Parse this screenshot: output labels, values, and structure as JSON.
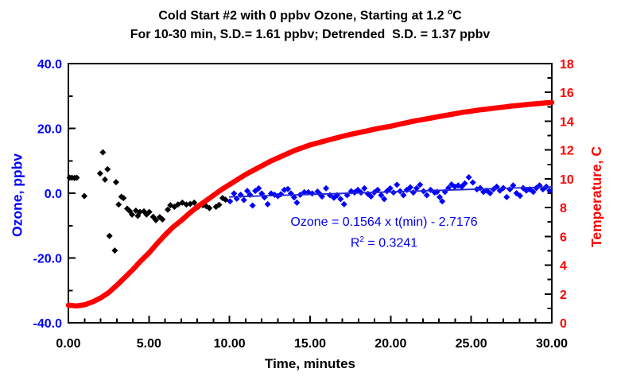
{
  "title": {
    "line1_prefix": "Cold Start #2 with 0 ppbv Ozone, Starting at 1.2 ",
    "line1_sup": "o",
    "line1_suffix": "C",
    "line2": "For 10-30 min, S.D.= 1.61 ppbv; Detrended  S.D. = 1.37 ppbv"
  },
  "annotation": {
    "equation": "Ozone = 0.1564 x t(min) - 2.7176",
    "r2_prefix": "R",
    "r2_sup": "2",
    "r2_suffix": " = 0.3241"
  },
  "colors": {
    "ozone": "#0000ff",
    "ozone_early": "#000000",
    "temperature": "#ff0000",
    "trend_line": "#2323d6",
    "axis": "#000000",
    "background": "#ffffff"
  },
  "chart_data": {
    "type": "scatter",
    "title": "Cold Start #2 with 0 ppbv Ozone, Starting at 1.2 oC",
    "subtitle": "For 10-30 min, S.D.= 1.61 ppbv; Detrended S.D. = 1.37 ppbv",
    "xlabel": "Time, minutes",
    "ylabel_left": "Ozone, ppbv",
    "ylabel_right": "Temperature, C",
    "xlim": [
      0,
      30
    ],
    "ylim_left": [
      -40,
      40
    ],
    "ylim_right": [
      0,
      18
    ],
    "grid": false,
    "x_ticks": {
      "major": [
        0,
        5,
        10,
        15,
        20,
        25,
        30
      ],
      "labels": [
        "0.00",
        "5.00",
        "10.00",
        "15.00",
        "20.00",
        "25.00",
        "30.00"
      ],
      "minor_step": 1
    },
    "y_left_ticks": {
      "major": [
        40,
        20,
        0,
        -20,
        -40
      ],
      "labels": [
        "40.0",
        "20.0",
        "0.0",
        "-20.0",
        "-40.0"
      ],
      "minor": [
        30,
        10,
        -10,
        -30
      ]
    },
    "y_right_ticks": {
      "major": [
        18,
        16,
        14,
        12,
        10,
        8,
        6,
        4,
        2,
        0
      ],
      "labels": [
        "18",
        "16",
        "14",
        "12",
        "10",
        "8",
        "6",
        "4",
        "2",
        "0"
      ],
      "minor": [
        17,
        15,
        13,
        11,
        9,
        7,
        5,
        3,
        1
      ]
    },
    "trend_fit": {
      "slope": 0.1564,
      "intercept": -2.7176,
      "r2": 0.3241,
      "t_range": [
        10,
        30
      ]
    },
    "series": [
      {
        "name": "ozone-0-10min",
        "kind": "scatter",
        "marker": "diamond",
        "axis": "left",
        "color": "#000000",
        "points": [
          [
            0.08,
            4.8
          ],
          [
            0.22,
            4.8
          ],
          [
            0.38,
            4.7
          ],
          [
            0.52,
            4.8
          ],
          [
            0.99,
            -0.9
          ],
          [
            1.97,
            6.1
          ],
          [
            2.14,
            12.6
          ],
          [
            2.27,
            4.2
          ],
          [
            2.43,
            7.4
          ],
          [
            2.55,
            -13.2
          ],
          [
            2.88,
            -17.7
          ],
          [
            2.96,
            3.4
          ],
          [
            3.12,
            -3.5
          ],
          [
            3.29,
            -1.1
          ],
          [
            3.42,
            -1.5
          ],
          [
            3.65,
            -4.8
          ],
          [
            3.8,
            -5.5
          ],
          [
            3.95,
            -6.6
          ],
          [
            4.19,
            -5.4
          ],
          [
            4.31,
            -7.0
          ],
          [
            4.44,
            -5.8
          ],
          [
            4.69,
            -5.6
          ],
          [
            4.85,
            -6.6
          ],
          [
            5.02,
            -5.8
          ],
          [
            5.26,
            -7.3
          ],
          [
            5.43,
            -8.3
          ],
          [
            5.67,
            -7.4
          ],
          [
            5.84,
            -8.1
          ],
          [
            6.17,
            -5.1
          ],
          [
            6.33,
            -3.7
          ],
          [
            6.58,
            -4.2
          ],
          [
            6.8,
            -3.5
          ],
          [
            7.07,
            -2.9
          ],
          [
            7.32,
            -3.5
          ],
          [
            7.56,
            -3.3
          ],
          [
            7.81,
            -2.9
          ],
          [
            8.06,
            -4.2
          ],
          [
            8.34,
            -3.7
          ],
          [
            8.55,
            -4.0
          ],
          [
            8.75,
            -4.6
          ],
          [
            9.16,
            -4.2
          ],
          [
            9.35,
            -3.6
          ],
          [
            9.57,
            -1.5
          ],
          [
            9.75,
            -2.0
          ]
        ]
      },
      {
        "name": "ozone-10-30min",
        "kind": "scatter",
        "marker": "diamond",
        "axis": "left",
        "color": "#0000ff",
        "points": [
          [
            10.03,
            -2.5
          ],
          [
            10.28,
            -0.1
          ],
          [
            10.45,
            -1.7
          ],
          [
            10.69,
            -0.5
          ],
          [
            10.89,
            -2.1
          ],
          [
            11.1,
            0.7
          ],
          [
            11.27,
            -0.5
          ],
          [
            11.43,
            -3.8
          ],
          [
            11.6,
            0.7
          ],
          [
            11.81,
            1.5
          ],
          [
            12.0,
            -0.1
          ],
          [
            12.17,
            -1.3
          ],
          [
            12.37,
            -3.4
          ],
          [
            12.58,
            -0.1
          ],
          [
            12.8,
            -0.5
          ],
          [
            13.0,
            -0.9
          ],
          [
            13.19,
            -0.3
          ],
          [
            13.4,
            1.0
          ],
          [
            13.62,
            1.3
          ],
          [
            13.81,
            -0.1
          ],
          [
            14.01,
            -1.3
          ],
          [
            14.18,
            -2.9
          ],
          [
            14.39,
            -0.5
          ],
          [
            14.64,
            0.3
          ],
          [
            14.89,
            0.3
          ],
          [
            15.13,
            -0.1
          ],
          [
            15.46,
            0.5
          ],
          [
            15.66,
            -0.5
          ],
          [
            15.74,
            -1.0
          ],
          [
            15.99,
            1.5
          ],
          [
            16.23,
            -0.6
          ],
          [
            16.48,
            -1.4
          ],
          [
            16.68,
            -0.6
          ],
          [
            16.89,
            -1.8
          ],
          [
            17.11,
            -3.4
          ],
          [
            17.3,
            -0.6
          ],
          [
            17.55,
            0.6
          ],
          [
            17.76,
            0.2
          ],
          [
            17.96,
            1.0
          ],
          [
            18.16,
            0.2
          ],
          [
            18.37,
            1.5
          ],
          [
            18.59,
            -0.2
          ],
          [
            18.78,
            -1.0
          ],
          [
            18.98,
            0.2
          ],
          [
            19.19,
            1.0
          ],
          [
            19.41,
            -0.6
          ],
          [
            19.6,
            -1.8
          ],
          [
            19.77,
            0.6
          ],
          [
            19.97,
            1.5
          ],
          [
            20.18,
            0.2
          ],
          [
            20.39,
            2.6
          ],
          [
            20.59,
            0.6
          ],
          [
            20.79,
            -0.6
          ],
          [
            21.0,
            1.0
          ],
          [
            21.22,
            1.8
          ],
          [
            21.41,
            0.2
          ],
          [
            21.61,
            1.5
          ],
          [
            21.82,
            2.6
          ],
          [
            22.04,
            0.6
          ],
          [
            22.24,
            -0.6
          ],
          [
            22.48,
            1.0
          ],
          [
            22.73,
            0.2
          ],
          [
            22.88,
            0.4
          ],
          [
            23.04,
            -1.2
          ],
          [
            23.2,
            -2.5
          ],
          [
            23.37,
            0.4
          ],
          [
            23.58,
            1.6
          ],
          [
            23.78,
            2.7
          ],
          [
            23.98,
            2.0
          ],
          [
            24.19,
            2.4
          ],
          [
            24.41,
            2.0
          ],
          [
            24.6,
            3.0
          ],
          [
            24.85,
            4.9
          ],
          [
            25.1,
            3.3
          ],
          [
            25.35,
            1.2
          ],
          [
            25.56,
            1.6
          ],
          [
            25.76,
            0.4
          ],
          [
            25.96,
            0.8
          ],
          [
            26.17,
            0.0
          ],
          [
            26.38,
            1.2
          ],
          [
            26.58,
            2.0
          ],
          [
            26.78,
            0.8
          ],
          [
            26.99,
            1.6
          ],
          [
            27.2,
            -1.2
          ],
          [
            27.4,
            1.2
          ],
          [
            27.6,
            2.4
          ],
          [
            27.81,
            0.0
          ],
          [
            28.03,
            -0.8
          ],
          [
            28.22,
            1.6
          ],
          [
            28.42,
            0.8
          ],
          [
            28.63,
            1.2
          ],
          [
            28.85,
            0.4
          ],
          [
            29.04,
            1.6
          ],
          [
            29.24,
            2.4
          ],
          [
            29.45,
            1.2
          ],
          [
            29.66,
            2.0
          ],
          [
            29.86,
            0.8
          ]
        ]
      },
      {
        "name": "temperature",
        "kind": "line",
        "axis": "right",
        "color": "#ff0000",
        "width": 6.5,
        "points": [
          [
            0,
            1.22
          ],
          [
            0.5,
            1.17
          ],
          [
            1,
            1.25
          ],
          [
            1.5,
            1.45
          ],
          [
            2,
            1.72
          ],
          [
            2.5,
            2.1
          ],
          [
            3,
            2.6
          ],
          [
            3.5,
            3.14
          ],
          [
            4,
            3.7
          ],
          [
            4.5,
            4.3
          ],
          [
            5,
            4.85
          ],
          [
            5.5,
            5.5
          ],
          [
            6,
            6.1
          ],
          [
            6.5,
            6.65
          ],
          [
            7,
            7.1
          ],
          [
            7.5,
            7.6
          ],
          [
            8,
            8.05
          ],
          [
            8.5,
            8.45
          ],
          [
            9,
            8.85
          ],
          [
            9.5,
            9.25
          ],
          [
            10,
            9.6
          ],
          [
            10.5,
            9.95
          ],
          [
            11,
            10.3
          ],
          [
            11.5,
            10.6
          ],
          [
            12,
            10.9
          ],
          [
            12.5,
            11.2
          ],
          [
            13,
            11.45
          ],
          [
            13.5,
            11.7
          ],
          [
            14,
            11.95
          ],
          [
            14.5,
            12.15
          ],
          [
            15,
            12.35
          ],
          [
            15.5,
            12.5
          ],
          [
            16,
            12.65
          ],
          [
            16.5,
            12.8
          ],
          [
            17,
            12.95
          ],
          [
            17.5,
            13.08
          ],
          [
            18,
            13.2
          ],
          [
            18.5,
            13.32
          ],
          [
            19,
            13.45
          ],
          [
            19.5,
            13.55
          ],
          [
            20,
            13.65
          ],
          [
            20.5,
            13.78
          ],
          [
            21,
            13.9
          ],
          [
            21.5,
            14.02
          ],
          [
            22,
            14.12
          ],
          [
            22.5,
            14.22
          ],
          [
            23,
            14.32
          ],
          [
            23.5,
            14.42
          ],
          [
            24,
            14.52
          ],
          [
            24.5,
            14.62
          ],
          [
            25,
            14.7
          ],
          [
            25.5,
            14.78
          ],
          [
            26,
            14.85
          ],
          [
            26.5,
            14.92
          ],
          [
            27,
            14.98
          ],
          [
            27.5,
            15.05
          ],
          [
            28,
            15.1
          ],
          [
            28.5,
            15.16
          ],
          [
            29,
            15.21
          ],
          [
            29.5,
            15.26
          ],
          [
            30,
            15.3
          ]
        ]
      },
      {
        "name": "ozone-trend-line",
        "kind": "line",
        "axis": "left",
        "color": "#2323d6",
        "width": 1.8,
        "points": [
          [
            10,
            -1.1536
          ],
          [
            30,
            1.9744
          ]
        ]
      }
    ]
  }
}
